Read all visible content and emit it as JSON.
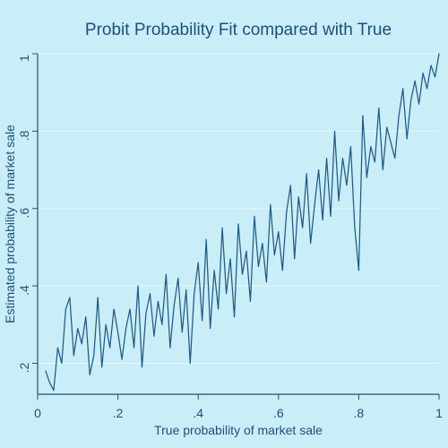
{
  "chart_data": {
    "type": "line",
    "title": "Probit Probability Fit compared with True",
    "xlabel": "True probability of market sale",
    "ylabel": "Estimated probability of market sale",
    "xlim": [
      0,
      1
    ],
    "ylim": [
      0.12,
      1
    ],
    "grid": true,
    "x_ticks": [
      {
        "value": 0,
        "label": "0"
      },
      {
        "value": 0.2,
        "label": ".2"
      },
      {
        "value": 0.4,
        "label": ".4"
      },
      {
        "value": 0.6,
        "label": ".6"
      },
      {
        "value": 0.8,
        "label": ".8"
      },
      {
        "value": 1,
        "label": "1"
      }
    ],
    "y_ticks": [
      {
        "value": 0.2,
        "label": ".2"
      },
      {
        "value": 0.4,
        "label": ".4"
      },
      {
        "value": 0.6,
        "label": ".6"
      },
      {
        "value": 0.8,
        "label": ".8"
      },
      {
        "value": 1,
        "label": "1"
      }
    ],
    "colors": {
      "background": "#c9eef8",
      "plot_background": "#c9eef8",
      "line": "#1f5a87",
      "grid": "#e4f7fb",
      "axis": "#1f4f7a"
    },
    "series": [
      {
        "x": [
          0.02,
          0.03,
          0.04,
          0.05,
          0.06,
          0.07,
          0.08,
          0.09,
          0.1,
          0.11,
          0.12,
          0.13,
          0.14,
          0.15,
          0.16,
          0.17,
          0.18,
          0.19,
          0.2,
          0.21,
          0.22,
          0.23,
          0.24,
          0.25,
          0.26,
          0.27,
          0.28,
          0.29,
          0.3,
          0.31,
          0.32,
          0.33,
          0.34,
          0.35,
          0.36,
          0.37,
          0.38,
          0.39,
          0.4,
          0.41,
          0.42,
          0.43,
          0.44,
          0.45,
          0.46,
          0.47,
          0.48,
          0.49,
          0.5,
          0.51,
          0.52,
          0.53,
          0.54,
          0.55,
          0.56,
          0.57,
          0.58,
          0.59,
          0.6,
          0.61,
          0.62,
          0.63,
          0.64,
          0.65,
          0.66,
          0.67,
          0.68,
          0.69,
          0.7,
          0.71,
          0.72,
          0.73,
          0.74,
          0.75,
          0.76,
          0.77,
          0.78,
          0.79,
          0.8,
          0.81,
          0.82,
          0.83,
          0.84,
          0.85,
          0.86,
          0.87,
          0.88,
          0.89,
          0.9,
          0.91,
          0.92,
          0.93,
          0.94,
          0.95,
          0.96,
          0.97,
          0.98,
          0.99,
          1.0
        ],
        "y": [
          0.18,
          0.15,
          0.13,
          0.24,
          0.2,
          0.34,
          0.37,
          0.22,
          0.29,
          0.25,
          0.32,
          0.17,
          0.22,
          0.37,
          0.19,
          0.3,
          0.24,
          0.34,
          0.28,
          0.21,
          0.29,
          0.34,
          0.24,
          0.4,
          0.19,
          0.33,
          0.38,
          0.27,
          0.36,
          0.3,
          0.43,
          0.24,
          0.35,
          0.42,
          0.28,
          0.39,
          0.2,
          0.38,
          0.46,
          0.31,
          0.52,
          0.29,
          0.44,
          0.34,
          0.55,
          0.38,
          0.47,
          0.32,
          0.56,
          0.43,
          0.49,
          0.36,
          0.58,
          0.45,
          0.51,
          0.41,
          0.61,
          0.48,
          0.54,
          0.44,
          0.59,
          0.66,
          0.47,
          0.63,
          0.55,
          0.69,
          0.51,
          0.61,
          0.7,
          0.57,
          0.73,
          0.58,
          0.8,
          0.62,
          0.73,
          0.66,
          0.76,
          0.55,
          0.44,
          0.84,
          0.68,
          0.76,
          0.72,
          0.86,
          0.7,
          0.81,
          0.77,
          0.73,
          0.84,
          0.91,
          0.78,
          0.88,
          0.93,
          0.87,
          0.95,
          0.91,
          0.97,
          0.94,
          1.0
        ]
      }
    ]
  }
}
